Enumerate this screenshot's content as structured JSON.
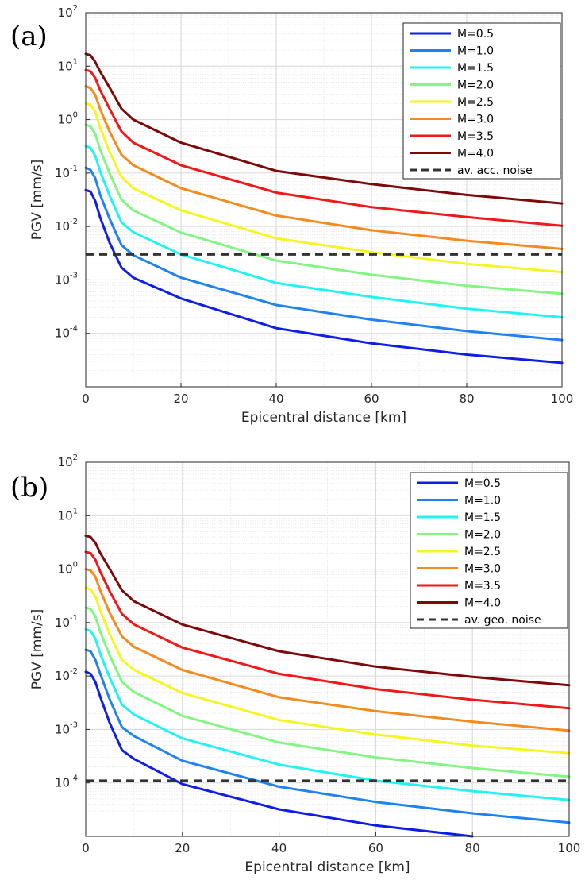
{
  "chart_data": [
    {
      "type": "line",
      "panel_label": "(a)",
      "xlabel": "Epicentral distance [km]",
      "ylabel": "PGV [mm/s]",
      "xlim": [
        0,
        100
      ],
      "ylim": [
        1e-05,
        100
      ],
      "yscale": "log",
      "xticks": [
        "0",
        "20",
        "40",
        "60",
        "80",
        "100"
      ],
      "yticks": [
        {
          "base": "10",
          "exp": "-4"
        },
        {
          "base": "10",
          "exp": "-3"
        },
        {
          "base": "10",
          "exp": "-2"
        },
        {
          "base": "10",
          "exp": "-1"
        },
        {
          "base": "10",
          "exp": "0"
        },
        {
          "base": "10",
          "exp": "1"
        },
        {
          "base": "10",
          "exp": "2"
        }
      ],
      "grid": true,
      "legend_position": "top-right",
      "series": [
        {
          "name": "M=0.5",
          "color": "#0f1ee6",
          "x": [
            0,
            1,
            2,
            3,
            5,
            7.5,
            10,
            20,
            40,
            60,
            80,
            100
          ],
          "y": [
            0.048,
            0.045,
            0.03,
            0.015,
            0.005,
            0.0017,
            0.0011,
            0.00045,
            0.000125,
            6.5e-05,
            4e-05,
            2.8e-05
          ]
        },
        {
          "name": "M=1.0",
          "color": "#2082f0",
          "x": [
            0,
            1,
            2,
            3,
            5,
            7.5,
            10,
            20,
            40,
            60,
            80,
            100
          ],
          "y": [
            0.125,
            0.115,
            0.08,
            0.04,
            0.014,
            0.0045,
            0.0029,
            0.0011,
            0.00034,
            0.00018,
            0.00011,
            7.5e-05
          ]
        },
        {
          "name": "M=1.5",
          "color": "#22f2f2",
          "x": [
            0,
            1,
            2,
            3,
            5,
            7.5,
            10,
            20,
            40,
            60,
            80,
            100
          ],
          "y": [
            0.32,
            0.3,
            0.21,
            0.11,
            0.038,
            0.012,
            0.0078,
            0.003,
            0.00088,
            0.00048,
            0.00029,
            0.0002
          ]
        },
        {
          "name": "M=2.0",
          "color": "#82f582",
          "x": [
            0,
            1,
            2,
            3,
            5,
            7.5,
            10,
            20,
            40,
            60,
            80,
            100
          ],
          "y": [
            0.8,
            0.75,
            0.54,
            0.28,
            0.1,
            0.032,
            0.02,
            0.0077,
            0.0023,
            0.00125,
            0.00078,
            0.00055
          ]
        },
        {
          "name": "M=2.5",
          "color": "#f5f522",
          "x": [
            0,
            1,
            2,
            3,
            5,
            7.5,
            10,
            20,
            40,
            60,
            80,
            100
          ],
          "y": [
            2.0,
            1.9,
            1.4,
            0.72,
            0.25,
            0.085,
            0.052,
            0.02,
            0.006,
            0.0033,
            0.002,
            0.0014
          ]
        },
        {
          "name": "M=3.0",
          "color": "#f58a1f",
          "x": [
            0,
            1,
            2,
            3,
            5,
            7.5,
            10,
            20,
            40,
            60,
            80,
            100
          ],
          "y": [
            4.2,
            3.9,
            2.9,
            1.6,
            0.6,
            0.22,
            0.14,
            0.052,
            0.016,
            0.0085,
            0.0054,
            0.0038
          ]
        },
        {
          "name": "M=3.5",
          "color": "#f01818",
          "x": [
            0,
            1,
            2,
            3,
            5,
            7.5,
            10,
            20,
            40,
            60,
            80,
            100
          ],
          "y": [
            8.5,
            8.0,
            6.0,
            3.6,
            1.6,
            0.6,
            0.37,
            0.14,
            0.043,
            0.023,
            0.015,
            0.0103
          ]
        },
        {
          "name": "M=4.0",
          "color": "#7d0a0a",
          "x": [
            0,
            1,
            2,
            3,
            5,
            7.5,
            10,
            20,
            40,
            60,
            80,
            100
          ],
          "y": [
            17,
            16,
            12,
            8,
            4,
            1.6,
            1.0,
            0.37,
            0.11,
            0.062,
            0.039,
            0.027
          ]
        }
      ],
      "reference_line": {
        "name": "av. acc. noise",
        "y": 0.003,
        "color": "#333333",
        "style": "dashed"
      }
    },
    {
      "type": "line",
      "panel_label": "(b)",
      "xlabel": "Epicentral distance [km]",
      "ylabel": "PGV [mm/s]",
      "xlim": [
        0,
        100
      ],
      "ylim": [
        1e-05,
        100
      ],
      "yscale": "log",
      "xticks": [
        "0",
        "20",
        "40",
        "60",
        "80",
        "100"
      ],
      "yticks": [
        {
          "base": "10",
          "exp": "-4"
        },
        {
          "base": "10",
          "exp": "-3"
        },
        {
          "base": "10",
          "exp": "-2"
        },
        {
          "base": "10",
          "exp": "-1"
        },
        {
          "base": "10",
          "exp": "0"
        },
        {
          "base": "10",
          "exp": "1"
        },
        {
          "base": "10",
          "exp": "2"
        }
      ],
      "grid": true,
      "legend_position": "top-right",
      "series": [
        {
          "name": "M=0.5",
          "color": "#0f1ee6",
          "x": [
            0,
            1,
            2,
            3,
            5,
            7.5,
            10,
            20,
            40,
            60,
            80
          ],
          "y": [
            0.012,
            0.011,
            0.0077,
            0.0041,
            0.0013,
            0.00041,
            0.00028,
            9.5e-05,
            3.2e-05,
            1.6e-05,
            1e-05
          ]
        },
        {
          "name": "M=1.0",
          "color": "#2082f0",
          "x": [
            0,
            1,
            2,
            3,
            5,
            7.5,
            10,
            20,
            40,
            60,
            80,
            100
          ],
          "y": [
            0.031,
            0.029,
            0.02,
            0.011,
            0.0036,
            0.0011,
            0.00075,
            0.00026,
            8.5e-05,
            4.4e-05,
            2.7e-05,
            1.8e-05
          ]
        },
        {
          "name": "M=1.5",
          "color": "#22f2f2",
          "x": [
            0,
            1,
            2,
            3,
            5,
            7.5,
            10,
            20,
            40,
            60,
            80,
            100
          ],
          "y": [
            0.075,
            0.07,
            0.05,
            0.026,
            0.0092,
            0.0029,
            0.0019,
            0.00068,
            0.00022,
            0.00011,
            7e-05,
            4.8e-05
          ]
        },
        {
          "name": "M=2.0",
          "color": "#82f582",
          "x": [
            0,
            1,
            2,
            3,
            5,
            7.5,
            10,
            20,
            40,
            60,
            80,
            100
          ],
          "y": [
            0.19,
            0.18,
            0.13,
            0.067,
            0.024,
            0.0078,
            0.005,
            0.0018,
            0.00057,
            0.0003,
            0.00019,
            0.00013
          ]
        },
        {
          "name": "M=2.5",
          "color": "#f5f522",
          "x": [
            0,
            1,
            2,
            3,
            5,
            7.5,
            10,
            20,
            40,
            60,
            80,
            100
          ],
          "y": [
            0.45,
            0.42,
            0.31,
            0.17,
            0.06,
            0.02,
            0.013,
            0.0048,
            0.0015,
            0.0008,
            0.0005,
            0.00036
          ]
        },
        {
          "name": "M=3.0",
          "color": "#f58a1f",
          "x": [
            0,
            1,
            2,
            3,
            5,
            7.5,
            10,
            20,
            40,
            60,
            80,
            100
          ],
          "y": [
            1.0,
            0.95,
            0.72,
            0.4,
            0.15,
            0.055,
            0.035,
            0.013,
            0.004,
            0.0022,
            0.0014,
            0.00095
          ]
        },
        {
          "name": "M=3.5",
          "color": "#f01818",
          "x": [
            0,
            1,
            2,
            3,
            5,
            7.5,
            10,
            20,
            40,
            60,
            80,
            100
          ],
          "y": [
            2.1,
            2.0,
            1.5,
            0.9,
            0.38,
            0.145,
            0.092,
            0.034,
            0.011,
            0.0057,
            0.0036,
            0.0025
          ]
        },
        {
          "name": "M=4.0",
          "color": "#7d0a0a",
          "x": [
            0,
            1,
            2,
            3,
            5,
            7.5,
            10,
            20,
            40,
            60,
            80,
            100
          ],
          "y": [
            4.2,
            4.0,
            3.1,
            2.0,
            1.0,
            0.4,
            0.25,
            0.092,
            0.029,
            0.015,
            0.0096,
            0.0067
          ]
        }
      ],
      "reference_line": {
        "name": "av. geo. noise",
        "y": 0.00011,
        "color": "#333333",
        "style": "dashed"
      }
    }
  ]
}
